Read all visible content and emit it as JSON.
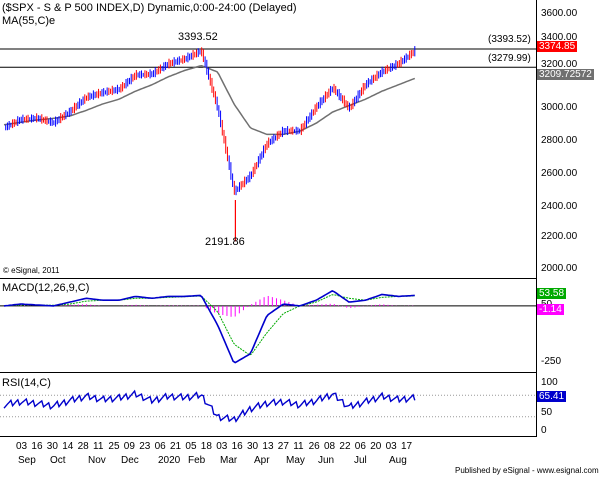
{
  "price_pane": {
    "title": "($SPX - S & P 500 INDEX,D) Dynamic,0:00-24:00 (Delayed)",
    "ma_label": "MA(55,C)e",
    "credit": "© eSignal, 2011",
    "annotation_high": "3393.52",
    "annotation_low": "2191.86",
    "h_line_high_label": "(3393.52)",
    "h_line_low_label": "(3279.99)",
    "price_tag": "3374.85",
    "ma_tag": "3209.72572",
    "y_ticks": [
      "3600.00",
      "3400.00",
      "3200.00",
      "3000.00",
      "2800.00",
      "2600.00",
      "2400.00",
      "2200.00",
      "2000.00"
    ]
  },
  "macd_pane": {
    "title": "MACD(12,26,9,C)",
    "value_tag": "53.58",
    "hist_tag": "-1.14",
    "y_ticks": [
      "50",
      "-250"
    ]
  },
  "rsi_pane": {
    "title": "RSI(14,C)",
    "value_tag": "65.41",
    "y_ticks": [
      "100",
      "50",
      "0"
    ]
  },
  "x_axis": {
    "day_labels": [
      "03",
      "16",
      "30",
      "14",
      "28",
      "11",
      "25",
      "09",
      "23",
      "06",
      "21",
      "05",
      "18",
      "03",
      "16",
      "30",
      "13",
      "27",
      "11",
      "26",
      "08",
      "22",
      "06",
      "20",
      "03",
      "17"
    ],
    "month_labels": [
      "Sep",
      "Oct",
      "Nov",
      "Dec",
      "2020",
      "Feb",
      "Mar",
      "Apr",
      "May",
      "Jun",
      "Jul",
      "Aug"
    ]
  },
  "footer": "Published by eSignal - www.esignal.com",
  "colors": {
    "up_bar": "#0000ff",
    "down_bar": "#ff0000",
    "ma": "#707070",
    "macd": "#0000cc",
    "macd_signal": "#00aa00",
    "macd_hist": "#ff00ff",
    "price_tag_bg": "#ff0000",
    "ma_tag_bg": "#707070",
    "macd_tag_bg": "#00aa00",
    "hist_tag_bg": "#ff00ff",
    "rsi_tag_bg": "#0000cc"
  },
  "chart_data": [
    {
      "type": "line",
      "title": "($SPX - S & P 500 INDEX,D) Dynamic,0:00-24:00 (Delayed)",
      "x": [
        "03 Sep",
        "16 Sep",
        "30 Sep",
        "14 Oct",
        "28 Oct",
        "11 Nov",
        "25 Nov",
        "09 Dec",
        "23 Dec",
        "06 Jan",
        "21 Jan",
        "05 Feb",
        "18 Feb",
        "03 Mar",
        "16 Mar",
        "30 Mar",
        "13 Apr",
        "27 Apr",
        "11 May",
        "26 May",
        "08 Jun",
        "22 Jun",
        "06 Jul",
        "20 Jul",
        "03 Aug",
        "17 Aug"
      ],
      "series": [
        {
          "name": "$SPX",
          "values": [
            2900,
            2950,
            2960,
            2930,
            3000,
            3090,
            3120,
            3140,
            3230,
            3235,
            3300,
            3330,
            3380,
            3020,
            2500,
            2600,
            2800,
            2880,
            2880,
            3030,
            3150,
            3020,
            3170,
            3250,
            3300,
            3380
          ]
        },
        {
          "name": "MA(55,C)e",
          "values": [
            2920,
            2935,
            2950,
            2960,
            2975,
            3010,
            3050,
            3080,
            3130,
            3170,
            3220,
            3260,
            3290,
            3250,
            3050,
            2900,
            2860,
            2860,
            2880,
            2930,
            3000,
            3040,
            3080,
            3130,
            3170,
            3210
          ]
        }
      ],
      "annotations": [
        "3393.52",
        "2191.86",
        "(3393.52)",
        "(3279.99)"
      ],
      "ylim": [
        2000,
        3650
      ]
    },
    {
      "type": "line",
      "title": "MACD(12,26,9,C)",
      "series": [
        {
          "name": "MACD",
          "values": [
            0,
            10,
            5,
            0,
            20,
            40,
            30,
            30,
            50,
            40,
            50,
            50,
            55,
            -100,
            -300,
            -250,
            -50,
            10,
            0,
            30,
            80,
            20,
            30,
            60,
            50,
            55
          ]
        },
        {
          "name": "Signal",
          "values": [
            0,
            5,
            5,
            3,
            10,
            25,
            30,
            30,
            40,
            40,
            45,
            48,
            52,
            -30,
            -200,
            -260,
            -140,
            -40,
            0,
            20,
            60,
            40,
            30,
            45,
            50,
            52
          ]
        }
      ],
      "ylim": [
        -330,
        120
      ]
    },
    {
      "type": "line",
      "title": "RSI(14,C)",
      "series": [
        {
          "name": "RSI",
          "values": [
            52,
            58,
            55,
            50,
            60,
            68,
            62,
            65,
            72,
            60,
            68,
            66,
            70,
            30,
            25,
            45,
            55,
            58,
            52,
            60,
            72,
            48,
            58,
            68,
            62,
            65
          ]
        }
      ],
      "ylim": [
        0,
        100
      ]
    }
  ]
}
